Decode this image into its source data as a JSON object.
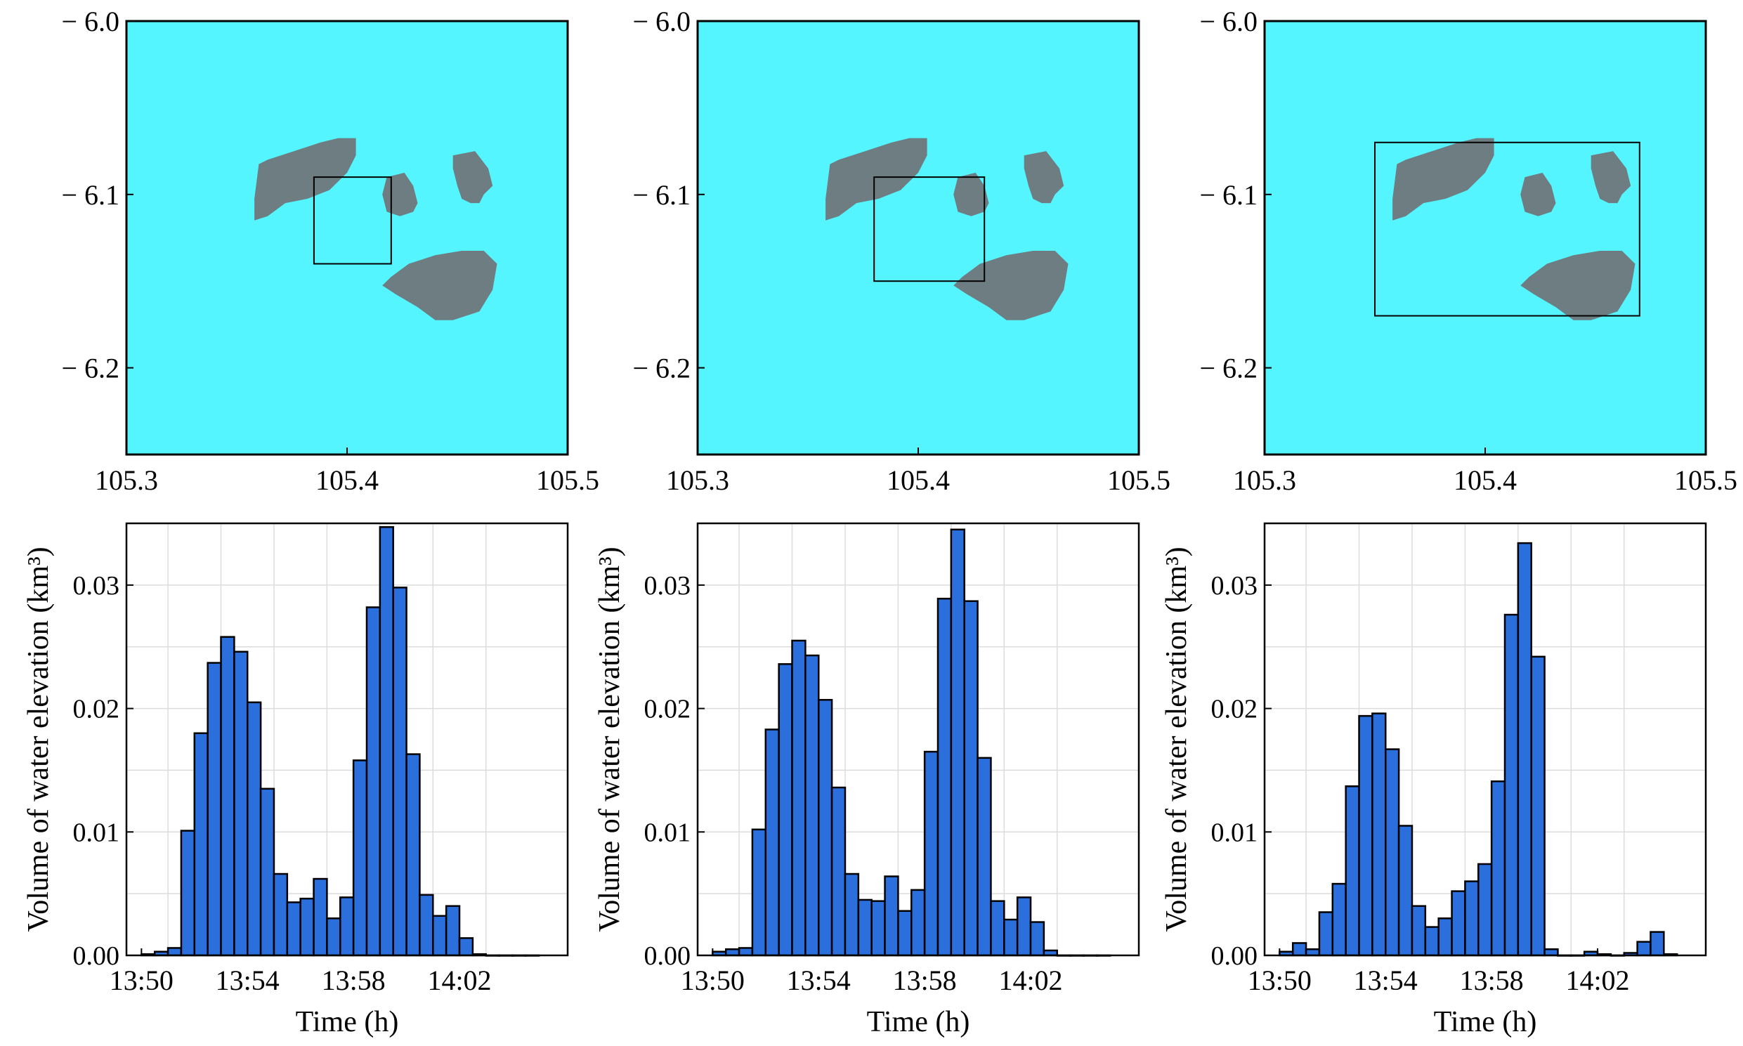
{
  "chart_data": [
    {
      "type": "map",
      "panel": "top-left",
      "xlim": [
        105.3,
        105.5
      ],
      "ylim": [
        -6.25,
        -6.0
      ],
      "xticks": [
        {
          "v": 105.3,
          "label": "105.3"
        },
        {
          "v": 105.4,
          "label": "105.4"
        },
        {
          "v": 105.5,
          "label": "105.5"
        }
      ],
      "yticks": [
        {
          "v": -6.0,
          "label": "− 6.0"
        },
        {
          "v": -6.1,
          "label": "− 6.1"
        },
        {
          "v": -6.2,
          "label": "− 6.2"
        }
      ],
      "colors": {
        "water": "#55f5ff",
        "land": "#6e7d82"
      },
      "selection_box": {
        "lon": [
          105.385,
          105.42
        ],
        "lat": [
          -6.14,
          -6.09
        ]
      }
    },
    {
      "type": "map",
      "panel": "top-middle",
      "xlim": [
        105.3,
        105.5
      ],
      "ylim": [
        -6.25,
        -6.0
      ],
      "xticks": [
        {
          "v": 105.3,
          "label": "105.3"
        },
        {
          "v": 105.4,
          "label": "105.4"
        },
        {
          "v": 105.5,
          "label": "105.5"
        }
      ],
      "yticks": [
        {
          "v": -6.0,
          "label": "− 6.0"
        },
        {
          "v": -6.1,
          "label": "− 6.1"
        },
        {
          "v": -6.2,
          "label": "− 6.2"
        }
      ],
      "colors": {
        "water": "#55f5ff",
        "land": "#6e7d82"
      },
      "selection_box": {
        "lon": [
          105.38,
          105.43
        ],
        "lat": [
          -6.15,
          -6.09
        ]
      }
    },
    {
      "type": "map",
      "panel": "top-right",
      "xlim": [
        105.3,
        105.5
      ],
      "ylim": [
        -6.25,
        -6.0
      ],
      "xticks": [
        {
          "v": 105.3,
          "label": "105.3"
        },
        {
          "v": 105.4,
          "label": "105.4"
        },
        {
          "v": 105.5,
          "label": "105.5"
        }
      ],
      "yticks": [
        {
          "v": -6.0,
          "label": "− 6.0"
        },
        {
          "v": -6.1,
          "label": "− 6.1"
        },
        {
          "v": -6.2,
          "label": "− 6.2"
        }
      ],
      "colors": {
        "water": "#55f5ff",
        "land": "#6e7d82"
      },
      "selection_box": {
        "lon": [
          105.35,
          105.47
        ],
        "lat": [
          -6.17,
          -6.07
        ]
      }
    },
    {
      "type": "bar",
      "panel": "bottom-left",
      "xlabel": "Time (h)",
      "ylabel": "Volume of water elevation (km³)",
      "ylim": [
        0,
        0.035
      ],
      "x_start": "13:50",
      "bin_minutes": 0.5,
      "xtick_labels": [
        "13:50",
        "13:54",
        "13:58",
        "14:02"
      ],
      "ytick_labels": [
        "0.00",
        "0.01",
        "0.02",
        "0.03"
      ],
      "bar_color": "#2a6fdc",
      "values": [
        0.0001,
        0.0003,
        0.0006,
        0.0101,
        0.018,
        0.0237,
        0.0258,
        0.0246,
        0.0205,
        0.0135,
        0.0066,
        0.0043,
        0.0046,
        0.0062,
        0.003,
        0.0047,
        0.0158,
        0.0282,
        0.0347,
        0.0298,
        0.0163,
        0.0049,
        0.0032,
        0.004,
        0.0014,
        0.0001,
        0,
        0,
        0,
        0
      ]
    },
    {
      "type": "bar",
      "panel": "bottom-middle",
      "xlabel": "Time (h)",
      "ylabel": "Volume of water elevation (km³)",
      "ylim": [
        0,
        0.035
      ],
      "x_start": "13:50",
      "bin_minutes": 0.5,
      "xtick_labels": [
        "13:50",
        "13:54",
        "13:58",
        "14:02"
      ],
      "ytick_labels": [
        "0.00",
        "0.01",
        "0.02",
        "0.03"
      ],
      "bar_color": "#2a6fdc",
      "values": [
        0.0003,
        0.0005,
        0.0006,
        0.0102,
        0.0183,
        0.0236,
        0.0255,
        0.0243,
        0.0207,
        0.0136,
        0.0066,
        0.0045,
        0.0044,
        0.0064,
        0.0036,
        0.0053,
        0.0165,
        0.0289,
        0.0345,
        0.0287,
        0.016,
        0.0044,
        0.0029,
        0.0047,
        0.0027,
        0.0004,
        0,
        0,
        0,
        0
      ]
    },
    {
      "type": "bar",
      "panel": "bottom-right",
      "xlabel": "Time (h)",
      "ylabel": "Volume of water elevation (km³)",
      "ylim": [
        0,
        0.035
      ],
      "x_start": "13:50",
      "bin_minutes": 0.5,
      "xtick_labels": [
        "13:50",
        "13:54",
        "13:58",
        "14:02"
      ],
      "ytick_labels": [
        "0.00",
        "0.01",
        "0.02",
        "0.03"
      ],
      "bar_color": "#2a6fdc",
      "values": [
        0.0003,
        0.001,
        0.0005,
        0.0035,
        0.0058,
        0.0137,
        0.0194,
        0.0196,
        0.0167,
        0.0105,
        0.004,
        0.0023,
        0.003,
        0.0052,
        0.006,
        0.0074,
        0.0141,
        0.0276,
        0.0334,
        0.0242,
        0.0005,
        0,
        0,
        0.0003,
        0.0001,
        0,
        0.0002,
        0.0011,
        0.0019,
        0.0001
      ]
    }
  ]
}
